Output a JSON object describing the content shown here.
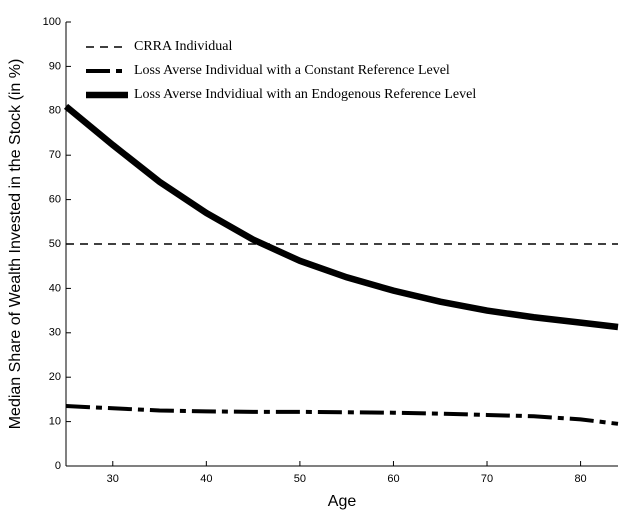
{
  "chart_data": {
    "type": "line",
    "x_label": "Age",
    "y_label": "Median Share of Wealth Invested in the Stock (in %)",
    "xlim": [
      25,
      84
    ],
    "xticks": [
      30,
      40,
      50,
      60,
      70,
      80
    ],
    "ylim": [
      0,
      100
    ],
    "yticks": [
      0,
      10,
      20,
      30,
      40,
      50,
      60,
      70,
      80,
      90,
      100
    ],
    "legend": "upper left",
    "x": [
      25,
      30,
      35,
      40,
      45,
      50,
      55,
      60,
      65,
      70,
      75,
      80,
      84
    ],
    "series": [
      {
        "name": "CRRA Individual",
        "color": "#000000",
        "linestyle": "dashed",
        "values": [
          50,
          50,
          50,
          50,
          50,
          50,
          50,
          50,
          50,
          50,
          50,
          50,
          50
        ]
      },
      {
        "name": "Loss Averse Individual with a Constant Reference Level",
        "color": "#000000",
        "linestyle": "dashdot",
        "values": [
          13.5,
          13,
          12.5,
          12.3,
          12.2,
          12.2,
          12.1,
          12,
          11.8,
          11.5,
          11.2,
          10.5,
          9.5
        ]
      },
      {
        "name": "Loss Averse Indvidiual with an Endogenous Reference Level",
        "color": "#000000",
        "linestyle": "solid",
        "values": [
          81,
          72.3,
          64,
          57,
          51,
          46.2,
          42.5,
          39.5,
          37,
          35,
          33.5,
          32.3,
          31.3
        ]
      }
    ]
  }
}
